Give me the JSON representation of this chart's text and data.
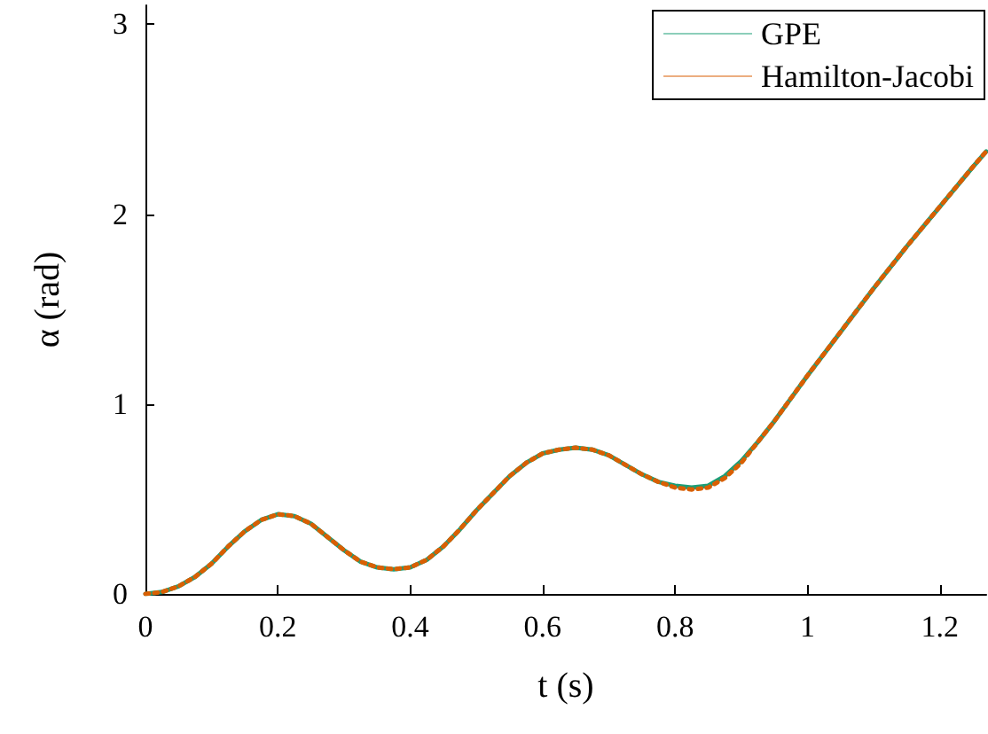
{
  "chart_data": {
    "type": "line",
    "xlabel": "t (s)",
    "ylabel": "α (rad)",
    "xlim": [
      0,
      1.27
    ],
    "ylim": [
      0,
      3.1
    ],
    "xticks": [
      0,
      0.2,
      0.4,
      0.6,
      0.8,
      1,
      1.2
    ],
    "yticks": [
      0,
      1,
      2,
      3
    ],
    "legend": "top right",
    "grid": false,
    "marker": "none",
    "x": [
      0,
      0.025,
      0.05,
      0.075,
      0.1,
      0.125,
      0.15,
      0.175,
      0.2,
      0.225,
      0.25,
      0.275,
      0.3,
      0.325,
      0.35,
      0.375,
      0.4,
      0.425,
      0.45,
      0.475,
      0.5,
      0.525,
      0.55,
      0.575,
      0.6,
      0.625,
      0.65,
      0.675,
      0.7,
      0.725,
      0.75,
      0.775,
      0.8,
      0.825,
      0.85,
      0.875,
      0.9,
      0.925,
      0.95,
      0.975,
      1.0,
      1.05,
      1.1,
      1.15,
      1.2,
      1.25,
      1.27
    ],
    "series": [
      {
        "name": "GPE",
        "color": "#1b9e77",
        "line_style": "solid",
        "values": [
          0,
          0.01,
          0.04,
          0.09,
          0.16,
          0.25,
          0.33,
          0.39,
          0.42,
          0.41,
          0.37,
          0.3,
          0.23,
          0.17,
          0.14,
          0.13,
          0.14,
          0.18,
          0.25,
          0.34,
          0.44,
          0.53,
          0.62,
          0.69,
          0.74,
          0.76,
          0.77,
          0.76,
          0.73,
          0.68,
          0.63,
          0.59,
          0.57,
          0.56,
          0.57,
          0.62,
          0.7,
          0.8,
          0.91,
          1.03,
          1.15,
          1.38,
          1.61,
          1.83,
          2.04,
          2.25,
          2.33
        ]
      },
      {
        "name": "Hamilton-Jacobi",
        "color": "#d95f02",
        "line_style": "dotted",
        "values": [
          0,
          0.01,
          0.04,
          0.09,
          0.16,
          0.25,
          0.33,
          0.39,
          0.42,
          0.41,
          0.37,
          0.3,
          0.23,
          0.17,
          0.14,
          0.13,
          0.14,
          0.18,
          0.25,
          0.34,
          0.44,
          0.53,
          0.62,
          0.69,
          0.74,
          0.76,
          0.77,
          0.76,
          0.73,
          0.68,
          0.63,
          0.59,
          0.56,
          0.55,
          0.56,
          0.61,
          0.69,
          0.8,
          0.91,
          1.03,
          1.15,
          1.38,
          1.61,
          1.83,
          2.04,
          2.25,
          2.33
        ]
      }
    ]
  }
}
